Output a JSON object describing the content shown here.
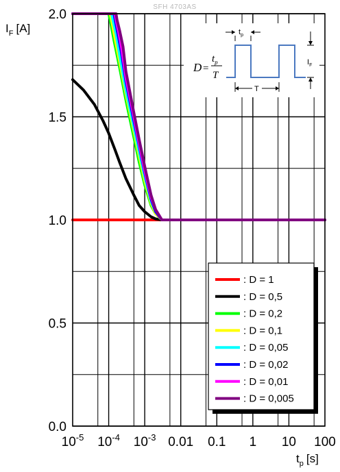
{
  "chart_data": {
    "type": "line",
    "title": "SFH 4703AS",
    "xlabel": "t",
    "xlabel_sub": "p",
    "xlabel_unit": "[s]",
    "ylabel": "I",
    "ylabel_sub": "F",
    "ylabel_unit": "[A]",
    "xscale": "log",
    "xlim": [
      1e-05,
      100
    ],
    "ylim": [
      0.0,
      2.0
    ],
    "grid": true,
    "legend_position": "bottom-right",
    "x_ticks": [
      {
        "base": "10",
        "exp": "-5"
      },
      {
        "base": "10",
        "exp": "-4"
      },
      {
        "base": "10",
        "exp": "-3"
      },
      {
        "base": "0.01",
        "exp": ""
      },
      {
        "base": "0.1",
        "exp": ""
      },
      {
        "base": "1",
        "exp": ""
      },
      {
        "base": "10",
        "exp": ""
      },
      {
        "base": "100",
        "exp": ""
      }
    ],
    "y_ticks": [
      "0.0",
      "0.5",
      "1.0",
      "1.5",
      "2.0"
    ],
    "series": [
      {
        "name": ": D = 1",
        "color": "#ff0000",
        "x": [
          1e-05,
          100
        ],
        "y": [
          1.0,
          1.0
        ]
      },
      {
        "name": ": D = 0,5",
        "color": "#000000",
        "x": [
          1e-05,
          2e-05,
          4e-05,
          7e-05,
          0.0001,
          0.00015,
          0.0002,
          0.0003,
          0.0005,
          0.0007,
          0.001,
          0.0015,
          0.002,
          0.003,
          0.005,
          100
        ],
        "y": [
          1.68,
          1.63,
          1.56,
          1.48,
          1.42,
          1.34,
          1.28,
          1.2,
          1.12,
          1.07,
          1.04,
          1.015,
          1.005,
          1.0,
          1.0,
          1.0
        ]
      },
      {
        "name": ": D = 0,2",
        "color": "#00ff00",
        "x": [
          1e-05,
          0.0001,
          0.00011,
          0.00014,
          0.0002,
          0.0003,
          0.0005,
          0.0007,
          0.001,
          0.0015,
          0.002,
          0.003,
          100
        ],
        "y": [
          2.0,
          2.0,
          1.97,
          1.87,
          1.74,
          1.58,
          1.4,
          1.28,
          1.17,
          1.07,
          1.03,
          1.0,
          1.0
        ]
      },
      {
        "name": ": D = 0,1",
        "color": "#ffff00",
        "x": [
          1e-05,
          0.00011,
          0.00012,
          0.00015,
          0.0002,
          0.0003,
          0.0005,
          0.0007,
          0.001,
          0.0015,
          0.002,
          0.003,
          100
        ],
        "y": [
          2.0,
          2.0,
          1.97,
          1.88,
          1.77,
          1.61,
          1.43,
          1.31,
          1.19,
          1.08,
          1.03,
          1.0,
          1.0
        ]
      },
      {
        "name": ": D = 0,05",
        "color": "#00ffff",
        "x": [
          1e-05,
          0.00012,
          0.00013,
          0.00016,
          0.0002,
          0.0003,
          0.0005,
          0.0007,
          0.001,
          0.0015,
          0.002,
          0.003,
          100
        ],
        "y": [
          2.0,
          2.0,
          1.97,
          1.9,
          1.8,
          1.63,
          1.45,
          1.33,
          1.21,
          1.09,
          1.04,
          1.0,
          1.0
        ]
      },
      {
        "name": ": D = 0,02",
        "color": "#0000ff",
        "x": [
          1e-05,
          0.00014,
          0.00015,
          0.00018,
          0.00022,
          0.0003,
          0.0005,
          0.0007,
          0.001,
          0.0015,
          0.002,
          0.003,
          100
        ],
        "y": [
          2.0,
          2.0,
          1.97,
          1.9,
          1.82,
          1.67,
          1.48,
          1.36,
          1.23,
          1.1,
          1.04,
          1.0,
          1.0
        ]
      },
      {
        "name": ": D = 0,01",
        "color": "#ff00ff",
        "x": [
          1e-05,
          0.00015,
          0.00016,
          0.00019,
          0.00023,
          0.0003,
          0.0005,
          0.0007,
          0.001,
          0.0015,
          0.002,
          0.003,
          100
        ],
        "y": [
          2.0,
          2.0,
          1.97,
          1.91,
          1.83,
          1.69,
          1.5,
          1.37,
          1.24,
          1.11,
          1.05,
          1.0,
          1.0
        ]
      },
      {
        "name": ": D = 0,005",
        "color": "#800080",
        "x": [
          1e-05,
          0.00016,
          0.00017,
          0.0002,
          0.00025,
          0.0003,
          0.0005,
          0.0007,
          0.001,
          0.0015,
          0.002,
          0.003,
          100
        ],
        "y": [
          2.0,
          2.0,
          1.97,
          1.92,
          1.84,
          1.72,
          1.52,
          1.39,
          1.26,
          1.12,
          1.05,
          1.0,
          1.0
        ]
      }
    ]
  },
  "inset": {
    "formula_lhs": "D",
    "formula_eq": "=",
    "numerator_base": "t",
    "numerator_sub": "p",
    "denominator": "T",
    "pulse_width_base": "t",
    "pulse_width_sub": "p",
    "period_label": "T",
    "amplitude_base": "I",
    "amplitude_sub": "F",
    "pulse_color": "#4a78c0"
  }
}
